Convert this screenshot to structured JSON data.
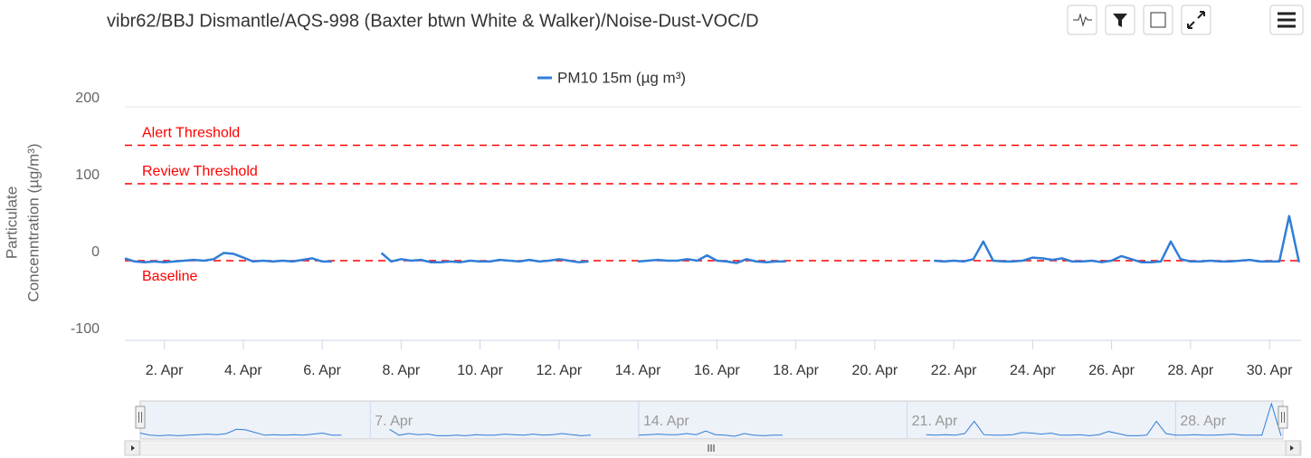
{
  "chart_data": {
    "type": "line",
    "title": "vibr62/BBJ Dismantle/AQS-998 (Baxter btwn White & Walker)/Noise-Dust-VOC/D",
    "ylabel": [
      "Particulate",
      "Concenntration (µg/m³)"
    ],
    "series": [
      {
        "name": "PM10 15m (µg m³)",
        "color": "#2f7ed8",
        "x": [
          1.0,
          1.25,
          1.5,
          1.75,
          2.0,
          2.25,
          2.5,
          2.75,
          3.0,
          3.25,
          3.5,
          3.75,
          4.0,
          4.25,
          4.5,
          4.75,
          5.0,
          5.25,
          5.5,
          5.75,
          6.0,
          6.25,
          6.75,
          7.5,
          7.75,
          8.0,
          8.25,
          8.5,
          8.75,
          9.0,
          9.25,
          9.5,
          9.75,
          10.0,
          10.25,
          10.5,
          10.75,
          11.0,
          11.25,
          11.5,
          11.75,
          12.0,
          12.25,
          12.5,
          12.75,
          13.5,
          14.0,
          14.25,
          14.5,
          14.75,
          15.0,
          15.25,
          15.5,
          15.75,
          16.0,
          16.25,
          16.5,
          16.75,
          17.0,
          17.25,
          17.5,
          17.75,
          19.5,
          21.5,
          21.75,
          22.0,
          22.25,
          22.5,
          22.75,
          23.0,
          23.25,
          23.5,
          23.75,
          24.0,
          24.25,
          24.5,
          24.75,
          25.0,
          25.25,
          25.5,
          25.75,
          26.0,
          26.25,
          26.5,
          26.75,
          27.0,
          27.25,
          27.5,
          27.75,
          28.0,
          28.25,
          28.5,
          28.75,
          29.0,
          29.25,
          29.5,
          29.75,
          30.0,
          30.25,
          30.5,
          30.75
        ],
        "values": [
          3,
          -1,
          -2,
          -1,
          -2,
          -1,
          0,
          1,
          0,
          2,
          10,
          9,
          4,
          -1,
          0,
          -1,
          0,
          -1,
          1,
          3,
          -1,
          -1,
          null,
          10,
          -1,
          2,
          0,
          1,
          -2,
          -2,
          -1,
          -2,
          0,
          -1,
          -1,
          1,
          0,
          -1,
          1,
          -1,
          0,
          2,
          0,
          -2,
          -1,
          null,
          -1,
          0,
          1,
          0,
          0,
          2,
          0,
          7,
          0,
          -1,
          -3,
          2,
          -1,
          -2,
          -1,
          -1,
          null,
          0,
          -1,
          0,
          -1,
          2,
          25,
          0,
          -1,
          -1,
          0,
          4,
          3,
          1,
          3,
          -1,
          -1,
          0,
          -2,
          0,
          6,
          2,
          -2,
          -2,
          -1,
          25,
          2,
          -1,
          -1,
          0,
          -1,
          -1,
          0,
          1,
          -1,
          -1,
          -1,
          58,
          -2
        ]
      }
    ],
    "plot_lines": [
      {
        "value": 150,
        "label": "Alert Threshold",
        "color": "#ff0000"
      },
      {
        "value": 100,
        "label": "Review Threshold",
        "color": "#ff0000"
      },
      {
        "value": 0,
        "label": "Baseline",
        "color": "#ff0000"
      }
    ],
    "xlim": [
      1,
      30.8
    ],
    "xticks": [
      {
        "value": 2,
        "label": "2. Apr"
      },
      {
        "value": 4,
        "label": "4. Apr"
      },
      {
        "value": 6,
        "label": "6. Apr"
      },
      {
        "value": 8,
        "label": "8. Apr"
      },
      {
        "value": 10,
        "label": "10. Apr"
      },
      {
        "value": 12,
        "label": "12. Apr"
      },
      {
        "value": 14,
        "label": "14. Apr"
      },
      {
        "value": 16,
        "label": "16. Apr"
      },
      {
        "value": 18,
        "label": "18. Apr"
      },
      {
        "value": 20,
        "label": "20. Apr"
      },
      {
        "value": 22,
        "label": "22. Apr"
      },
      {
        "value": 24,
        "label": "24. Apr"
      },
      {
        "value": 26,
        "label": "26. Apr"
      },
      {
        "value": 28,
        "label": "28. Apr"
      },
      {
        "value": 30,
        "label": "30. Apr"
      }
    ],
    "ylim": [
      -100,
      200
    ],
    "yticks": [
      -100,
      0,
      100,
      200
    ],
    "navigator_xticks": [
      {
        "value": 7,
        "label": "7. Apr"
      },
      {
        "value": 14,
        "label": "14. Apr"
      },
      {
        "value": 21,
        "label": "21. Apr"
      },
      {
        "value": 28,
        "label": "28. Apr"
      }
    ],
    "legend": "top"
  }
}
